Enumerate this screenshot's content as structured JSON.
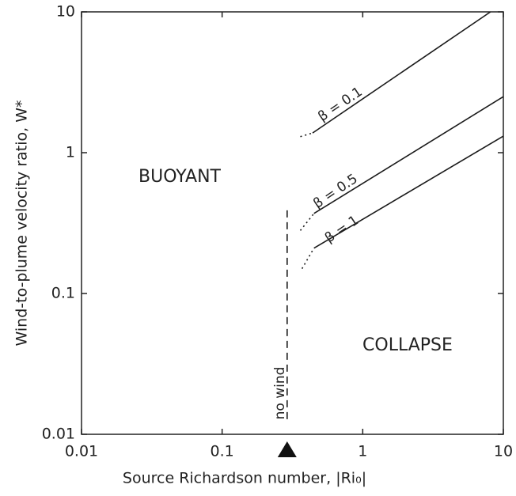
{
  "chart_data": {
    "type": "line",
    "xlabel": "Source Richardson number, |Ri₀|",
    "ylabel": "Wind-to-plume velocity ratio, W*",
    "xscale": "log",
    "yscale": "log",
    "xlim": [
      0.01,
      10
    ],
    "ylim": [
      0.01,
      10
    ],
    "xticks": [
      0.01,
      0.1,
      1,
      10
    ],
    "yticks": [
      0.01,
      0.1,
      1,
      10
    ],
    "color": "#1a1a1a",
    "series": [
      {
        "name": "β = 0.1",
        "x": [
          0.36,
          0.44,
          8.1
        ],
        "values": [
          1.3,
          1.38,
          10
        ],
        "segment_styles": [
          "dotted",
          "solid"
        ]
      },
      {
        "name": "β = 0.5",
        "x": [
          0.36,
          0.45,
          10
        ],
        "values": [
          0.28,
          0.37,
          2.5
        ],
        "segment_styles": [
          "dotted",
          "solid"
        ]
      },
      {
        "name": "β = 1",
        "x": [
          0.37,
          0.45,
          10
        ],
        "values": [
          0.15,
          0.21,
          1.31
        ],
        "segment_styles": [
          "dotted",
          "solid"
        ]
      },
      {
        "name": "no wind",
        "x": [
          0.29,
          0.29
        ],
        "values": [
          0.0128,
          0.39
        ],
        "segment_styles": [
          "dashed"
        ]
      }
    ],
    "annotations": [
      "BUOYANT",
      "COLLAPSE"
    ]
  }
}
